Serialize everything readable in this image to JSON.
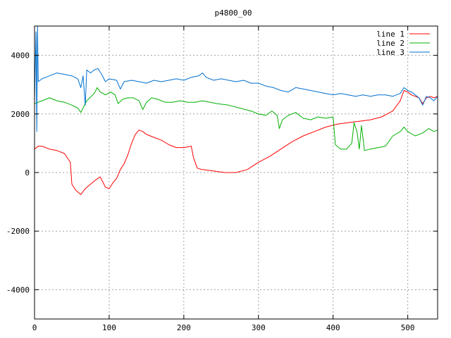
{
  "chart_data": {
    "type": "line",
    "title": "p4800_00",
    "xlabel": "",
    "ylabel": "",
    "xlim": [
      0,
      540
    ],
    "ylim": [
      -5000,
      5000
    ],
    "xticks": [
      0,
      100,
      200,
      300,
      400,
      500
    ],
    "yticks": [
      -4000,
      -2000,
      0,
      2000,
      4000
    ],
    "grid": true,
    "legend_position": "top-right",
    "series": [
      {
        "name": "line 1",
        "color": "#ff0000",
        "points": [
          [
            0,
            800
          ],
          [
            5,
            900
          ],
          [
            10,
            900
          ],
          [
            20,
            800
          ],
          [
            30,
            750
          ],
          [
            40,
            650
          ],
          [
            48,
            350
          ],
          [
            50,
            -400
          ],
          [
            55,
            -600
          ],
          [
            62,
            -750
          ],
          [
            68,
            -550
          ],
          [
            75,
            -400
          ],
          [
            82,
            -250
          ],
          [
            88,
            -150
          ],
          [
            92,
            -350
          ],
          [
            95,
            -500
          ],
          [
            100,
            -550
          ],
          [
            105,
            -350
          ],
          [
            110,
            -200
          ],
          [
            115,
            100
          ],
          [
            120,
            300
          ],
          [
            125,
            600
          ],
          [
            130,
            1000
          ],
          [
            135,
            1300
          ],
          [
            140,
            1450
          ],
          [
            145,
            1400
          ],
          [
            150,
            1300
          ],
          [
            160,
            1200
          ],
          [
            170,
            1100
          ],
          [
            180,
            950
          ],
          [
            190,
            850
          ],
          [
            200,
            850
          ],
          [
            210,
            900
          ],
          [
            213,
            500
          ],
          [
            218,
            150
          ],
          [
            225,
            100
          ],
          [
            240,
            50
          ],
          [
            255,
            0
          ],
          [
            270,
            0
          ],
          [
            285,
            100
          ],
          [
            300,
            350
          ],
          [
            315,
            550
          ],
          [
            330,
            800
          ],
          [
            345,
            1050
          ],
          [
            360,
            1250
          ],
          [
            375,
            1400
          ],
          [
            390,
            1550
          ],
          [
            405,
            1650
          ],
          [
            420,
            1700
          ],
          [
            435,
            1750
          ],
          [
            450,
            1800
          ],
          [
            465,
            1900
          ],
          [
            480,
            2100
          ],
          [
            490,
            2450
          ],
          [
            495,
            2800
          ],
          [
            500,
            2750
          ],
          [
            505,
            2650
          ],
          [
            510,
            2600
          ],
          [
            515,
            2550
          ],
          [
            520,
            2350
          ],
          [
            525,
            2550
          ],
          [
            530,
            2600
          ],
          [
            535,
            2550
          ],
          [
            540,
            2600
          ]
        ]
      },
      {
        "name": "line 2",
        "color": "#00b000",
        "points": [
          [
            0,
            2350
          ],
          [
            10,
            2450
          ],
          [
            20,
            2550
          ],
          [
            30,
            2450
          ],
          [
            40,
            2400
          ],
          [
            50,
            2300
          ],
          [
            58,
            2200
          ],
          [
            62,
            2050
          ],
          [
            66,
            2250
          ],
          [
            70,
            2450
          ],
          [
            76,
            2600
          ],
          [
            80,
            2700
          ],
          [
            84,
            2900
          ],
          [
            88,
            2750
          ],
          [
            95,
            2650
          ],
          [
            102,
            2750
          ],
          [
            108,
            2650
          ],
          [
            112,
            2350
          ],
          [
            118,
            2500
          ],
          [
            125,
            2550
          ],
          [
            132,
            2550
          ],
          [
            140,
            2450
          ],
          [
            145,
            2150
          ],
          [
            150,
            2400
          ],
          [
            157,
            2550
          ],
          [
            165,
            2500
          ],
          [
            175,
            2400
          ],
          [
            185,
            2400
          ],
          [
            195,
            2450
          ],
          [
            205,
            2400
          ],
          [
            215,
            2400
          ],
          [
            225,
            2450
          ],
          [
            235,
            2400
          ],
          [
            245,
            2350
          ],
          [
            260,
            2300
          ],
          [
            275,
            2200
          ],
          [
            290,
            2100
          ],
          [
            300,
            2000
          ],
          [
            310,
            1950
          ],
          [
            318,
            2100
          ],
          [
            325,
            1950
          ],
          [
            328,
            1500
          ],
          [
            332,
            1800
          ],
          [
            340,
            1950
          ],
          [
            350,
            2050
          ],
          [
            360,
            1850
          ],
          [
            370,
            1800
          ],
          [
            380,
            1900
          ],
          [
            390,
            1850
          ],
          [
            400,
            1900
          ],
          [
            403,
            950
          ],
          [
            410,
            800
          ],
          [
            418,
            800
          ],
          [
            425,
            1000
          ],
          [
            428,
            1700
          ],
          [
            432,
            1400
          ],
          [
            435,
            800
          ],
          [
            438,
            1600
          ],
          [
            442,
            750
          ],
          [
            450,
            800
          ],
          [
            460,
            850
          ],
          [
            470,
            900
          ],
          [
            480,
            1250
          ],
          [
            490,
            1400
          ],
          [
            495,
            1550
          ],
          [
            500,
            1400
          ],
          [
            510,
            1250
          ],
          [
            520,
            1350
          ],
          [
            528,
            1500
          ],
          [
            535,
            1400
          ],
          [
            540,
            1450
          ]
        ]
      },
      {
        "name": "line 3",
        "color": "#0070d0",
        "points": [
          [
            0,
            2400
          ],
          [
            2,
            4800
          ],
          [
            3,
            1400
          ],
          [
            4,
            5000
          ],
          [
            5,
            3100
          ],
          [
            10,
            3200
          ],
          [
            20,
            3300
          ],
          [
            30,
            3400
          ],
          [
            40,
            3350
          ],
          [
            50,
            3300
          ],
          [
            58,
            3200
          ],
          [
            62,
            2900
          ],
          [
            65,
            3300
          ],
          [
            68,
            2300
          ],
          [
            70,
            3500
          ],
          [
            75,
            3400
          ],
          [
            80,
            3500
          ],
          [
            85,
            3550
          ],
          [
            90,
            3350
          ],
          [
            95,
            3100
          ],
          [
            100,
            3200
          ],
          [
            110,
            3150
          ],
          [
            115,
            2850
          ],
          [
            120,
            3100
          ],
          [
            130,
            3150
          ],
          [
            140,
            3100
          ],
          [
            150,
            3050
          ],
          [
            160,
            3150
          ],
          [
            170,
            3100
          ],
          [
            180,
            3150
          ],
          [
            190,
            3200
          ],
          [
            200,
            3150
          ],
          [
            210,
            3250
          ],
          [
            220,
            3300
          ],
          [
            225,
            3400
          ],
          [
            230,
            3250
          ],
          [
            240,
            3150
          ],
          [
            250,
            3200
          ],
          [
            260,
            3150
          ],
          [
            270,
            3100
          ],
          [
            280,
            3150
          ],
          [
            290,
            3050
          ],
          [
            300,
            3050
          ],
          [
            310,
            2950
          ],
          [
            320,
            2900
          ],
          [
            330,
            2800
          ],
          [
            340,
            2750
          ],
          [
            350,
            2900
          ],
          [
            360,
            2850
          ],
          [
            370,
            2800
          ],
          [
            380,
            2750
          ],
          [
            390,
            2700
          ],
          [
            400,
            2650
          ],
          [
            410,
            2700
          ],
          [
            420,
            2650
          ],
          [
            430,
            2600
          ],
          [
            440,
            2650
          ],
          [
            450,
            2600
          ],
          [
            460,
            2650
          ],
          [
            470,
            2650
          ],
          [
            480,
            2600
          ],
          [
            490,
            2700
          ],
          [
            495,
            2900
          ],
          [
            500,
            2800
          ],
          [
            505,
            2750
          ],
          [
            510,
            2650
          ],
          [
            515,
            2550
          ],
          [
            520,
            2300
          ],
          [
            525,
            2600
          ],
          [
            530,
            2550
          ],
          [
            535,
            2450
          ],
          [
            540,
            2600
          ]
        ]
      }
    ]
  }
}
